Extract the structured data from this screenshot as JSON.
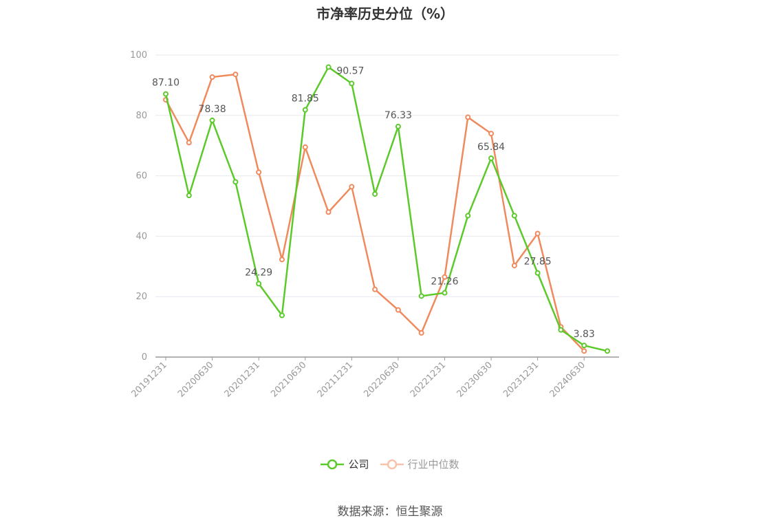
{
  "source_text": "数据来源：恒生聚源",
  "chart_data": {
    "type": "line",
    "title": "市净率历史分位（%）",
    "xlabel": "",
    "ylabel": "",
    "ylim": [
      0,
      100
    ],
    "yticks": [
      0,
      20,
      40,
      60,
      80,
      100
    ],
    "grid": true,
    "legend_position": "bottom",
    "x": [
      "20191231",
      "20200331",
      "20200630",
      "20200930",
      "20201231",
      "20210331",
      "20210630",
      "20210930",
      "20211231",
      "20220331",
      "20220630",
      "20220930",
      "20221231",
      "20230331",
      "20230630",
      "20230930",
      "20231231",
      "20240331",
      "20240630",
      "20240930"
    ],
    "x_tick_labels": [
      "20191231",
      "20200630",
      "20201231",
      "20210630",
      "20211231",
      "20220630",
      "20221231",
      "20230630",
      "20231231",
      "20240630"
    ],
    "series": [
      {
        "name": "公司",
        "color": "#5cc92a",
        "values": [
          87.1,
          53.5,
          78.38,
          58.0,
          24.29,
          13.8,
          81.85,
          96.0,
          90.57,
          54.0,
          76.33,
          20.2,
          21.26,
          46.8,
          65.84,
          46.8,
          27.85,
          9.0,
          3.83,
          2.0
        ],
        "data_labels": [
          "87.10",
          null,
          "78.38",
          null,
          "24.29",
          null,
          "81.85",
          null,
          "90.57",
          null,
          "76.33",
          null,
          "21.26",
          null,
          "65.84",
          null,
          "27.85",
          null,
          "3.83",
          null
        ]
      },
      {
        "name": "行业中位数",
        "color": "#f08a5d",
        "values": [
          85.2,
          71.0,
          92.7,
          93.6,
          61.2,
          32.3,
          69.5,
          48.0,
          56.4,
          22.4,
          15.6,
          8.0,
          26.5,
          79.4,
          74.0,
          30.3,
          40.9,
          10.0,
          2.0,
          null
        ]
      }
    ]
  }
}
